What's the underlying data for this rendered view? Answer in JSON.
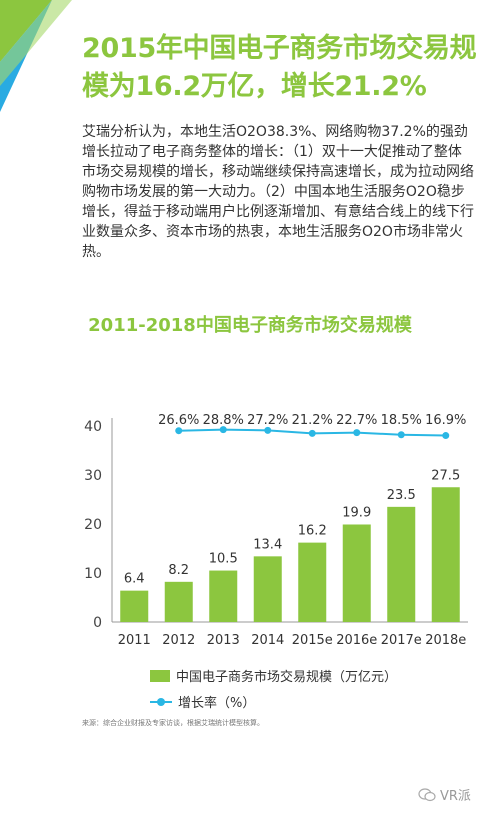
{
  "headline": "2015年中国电子商务市场交易规模为16.2万亿，增长21.2%",
  "body_text": "艾瑞分析认为，本地生活O2O38.3%、网络购物37.2%的强劲增长拉动了电子商务整体的增长：（1）双十一大促推动了整体市场交易规模的增长，移动端继续保持高速增长，成为拉动网络购物市场发展的第一大动力。（2）中国本地生活服务O2O稳步增长，得益于移动端用户比例逐渐增加、有意结合线上的线下行业数量众多、资本市场的热衷，本地生活服务O2O市场非常火热。",
  "chart_data": {
    "type": "bar",
    "title": "2011-2018中国电子商务市场交易规模",
    "categories": [
      "2011",
      "2012",
      "2013",
      "2014",
      "2015e",
      "2016e",
      "2017e",
      "2018e"
    ],
    "ylim": [
      0,
      40
    ],
    "yticks": [
      "0",
      "10",
      "20",
      "30",
      "40"
    ],
    "series": [
      {
        "name": "中国电子商务市场交易规模（万亿元）",
        "type": "bar",
        "values": [
          6.4,
          8.2,
          10.5,
          13.4,
          16.2,
          19.9,
          23.5,
          27.5
        ],
        "labels": [
          "6.4",
          "8.2",
          "10.5",
          "13.4",
          "16.2",
          "19.9",
          "23.5",
          "27.5"
        ],
        "color": "#8cc63f"
      },
      {
        "name": "增长率（%）",
        "type": "line",
        "values": [
          null,
          26.6,
          28.8,
          27.2,
          21.2,
          22.7,
          18.5,
          16.9
        ],
        "labels": [
          "",
          "26.6%",
          "28.8%",
          "27.2%",
          "21.2%",
          "22.7%",
          "18.5%",
          "16.9%"
        ],
        "color": "#2ab7e4"
      }
    ],
    "legend_position": "bottom"
  },
  "source_note": "来源：综合企业财报及专家访谈，根据艾瑞统计模型核算。",
  "watermark": "VR派",
  "colors": {
    "accent": "#8cc63f",
    "line": "#2ab7e4",
    "corner_blue": "#29abe2"
  }
}
